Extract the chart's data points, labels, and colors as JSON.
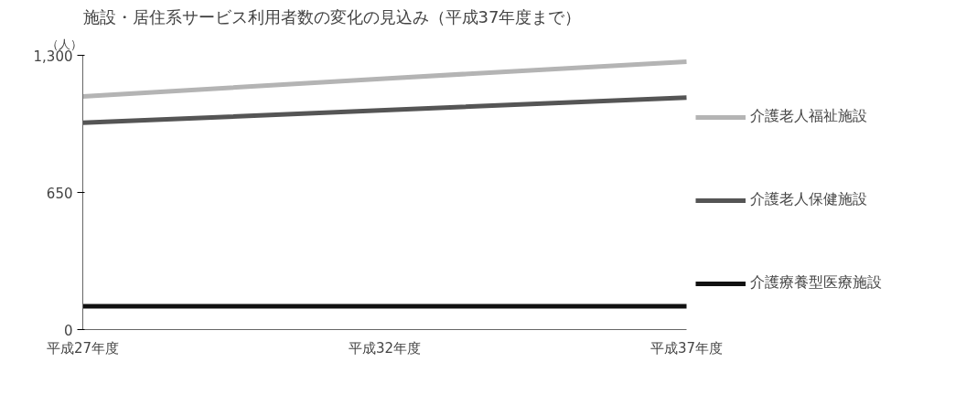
{
  "chart_data": {
    "type": "line",
    "title": "施設・居住系サービス利用者数の変化の見込み（平成37年度まで）",
    "ylabel": "（人）",
    "categories": [
      "平成27年度",
      "平成32年度",
      "平成37年度"
    ],
    "ylim": [
      0,
      1300
    ],
    "yticks": [
      0,
      {
        "value": 650,
        "label": "650"
      },
      {
        "value": 1300,
        "label": "1,300"
      }
    ],
    "grid": false,
    "legend": "right",
    "marker": "none",
    "line_style": "solid",
    "series": [
      {
        "name": "介護老人福祉施設",
        "color": "#b4b4b4",
        "values": [
          1105,
          1190,
          1270
        ]
      },
      {
        "name": "介護老人保健施設",
        "color": "#555555",
        "values": [
          980,
          1040,
          1100
        ]
      },
      {
        "name": "介護療養型医療施設",
        "color": "#111111",
        "values": [
          110,
          110,
          110
        ]
      }
    ]
  }
}
